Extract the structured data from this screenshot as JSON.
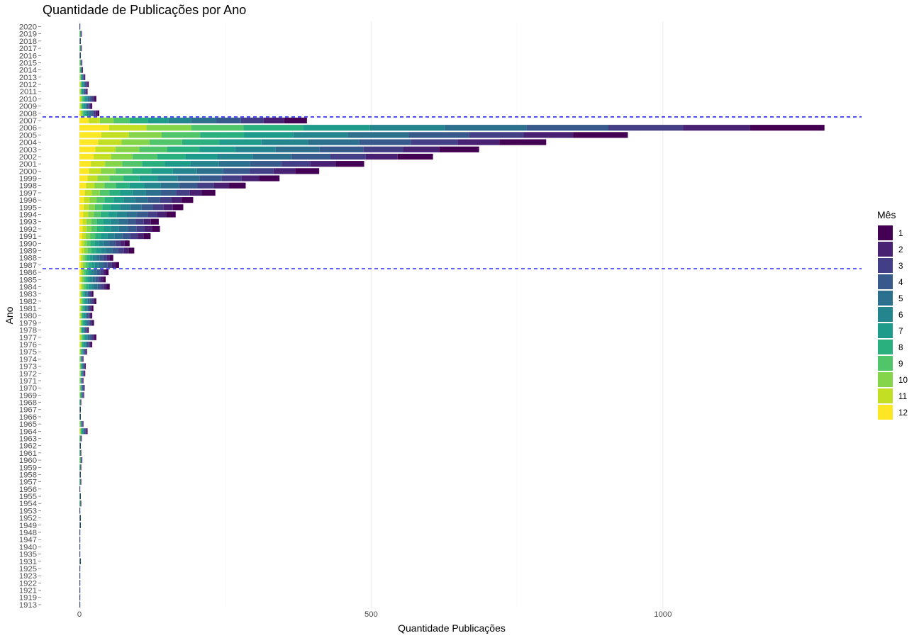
{
  "chart_data": {
    "type": "bar",
    "orientation": "horizontal",
    "stacked": true,
    "title": "Quantidade de Publicações por Ano",
    "xlabel": "Quantidade Publicações",
    "ylabel": "Ano",
    "xlim": [
      0,
      1300
    ],
    "x_ticks": [
      0,
      500,
      1000
    ],
    "grid": "vertical major lines",
    "legend": {
      "title": "Mês",
      "position": "right"
    },
    "reference_lines": [
      {
        "between": [
          "2007",
          "2008"
        ],
        "style": "dashed",
        "color": "#0000ff"
      },
      {
        "between": [
          "1986",
          "1987"
        ],
        "style": "dashed",
        "color": "#0000ff"
      }
    ],
    "categories": [
      "2020",
      "2019",
      "2018",
      "2017",
      "2016",
      "2015",
      "2014",
      "2013",
      "2012",
      "2011",
      "2010",
      "2009",
      "2008",
      "2007",
      "2006",
      "2005",
      "2004",
      "2003",
      "2002",
      "2001",
      "2000",
      "1999",
      "1998",
      "1997",
      "1996",
      "1995",
      "1994",
      "1993",
      "1992",
      "1991",
      "1990",
      "1989",
      "1988",
      "1987",
      "1986",
      "1985",
      "1984",
      "1983",
      "1982",
      "1981",
      "1980",
      "1979",
      "1978",
      "1977",
      "1976",
      "1975",
      "1974",
      "1973",
      "1972",
      "1971",
      "1970",
      "1969",
      "1968",
      "1967",
      "1966",
      "1965",
      "1964",
      "1963",
      "1962",
      "1961",
      "1960",
      "1959",
      "1958",
      "1957",
      "1956",
      "1955",
      "1954",
      "1953",
      "1952",
      "1949",
      "1948",
      "1947",
      "1940",
      "1935",
      "1931",
      "1925",
      "1923",
      "1922",
      "1921",
      "1919",
      "1913"
    ],
    "totals": [
      1,
      4,
      2,
      4,
      2,
      5,
      6,
      10,
      16,
      14,
      29,
      22,
      34,
      390,
      1277,
      940,
      800,
      685,
      606,
      488,
      411,
      343,
      285,
      233,
      195,
      178,
      165,
      136,
      138,
      122,
      86,
      94,
      58,
      68,
      50,
      45,
      52,
      24,
      29,
      24,
      22,
      25,
      16,
      29,
      22,
      13,
      7,
      11,
      10,
      7,
      9,
      8,
      3,
      2,
      2,
      7,
      14,
      4,
      2,
      3,
      5,
      3,
      2,
      3,
      1,
      2,
      3,
      1,
      2,
      2,
      1,
      1,
      1,
      1,
      2,
      1,
      1,
      1,
      1,
      1,
      1
    ],
    "series": [
      {
        "name": "12",
        "color": "#fde725",
        "share": 0.04
      },
      {
        "name": "11",
        "color": "#c2df23",
        "share": 0.05
      },
      {
        "name": "10",
        "color": "#85d54a",
        "share": 0.06
      },
      {
        "name": "9",
        "color": "#51c56a",
        "share": 0.07
      },
      {
        "name": "8",
        "color": "#2ab07f",
        "share": 0.08
      },
      {
        "name": "7",
        "color": "#1e9b8a",
        "share": 0.09
      },
      {
        "name": "6",
        "color": "#25858e",
        "share": 0.1
      },
      {
        "name": "5",
        "color": "#2d708e",
        "share": 0.11
      },
      {
        "name": "4",
        "color": "#38598c",
        "share": 0.11
      },
      {
        "name": "3",
        "color": "#433e85",
        "share": 0.1
      },
      {
        "name": "2",
        "color": "#482173",
        "share": 0.09
      },
      {
        "name": "1",
        "color": "#440154",
        "share": 0.1
      }
    ]
  }
}
